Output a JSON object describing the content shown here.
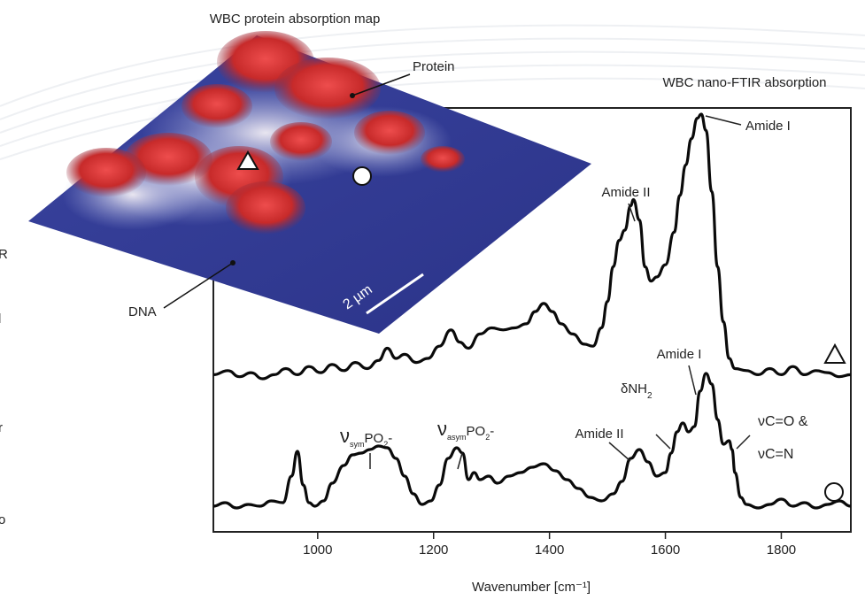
{
  "map": {
    "title": "WBC protein absorption map",
    "protein_label": "Protein",
    "dna_label": "DNA",
    "scale_label": "2 µm"
  },
  "chart_data": {
    "type": "line",
    "title": "WBC nano-FTIR absorption",
    "xlabel": "Wavenumber [cm⁻¹]",
    "ylabel": "",
    "xlim": [
      820,
      1920
    ],
    "xticks": [
      1000,
      1200,
      1400,
      1600,
      1800
    ],
    "grid": false,
    "series": [
      {
        "marker": "triangle",
        "x": [
          820,
          845,
          865,
          885,
          905,
          925,
          945,
          965,
          985,
          1005,
          1025,
          1045,
          1065,
          1085,
          1105,
          1120,
          1135,
          1150,
          1170,
          1190,
          1210,
          1230,
          1245,
          1260,
          1280,
          1300,
          1320,
          1340,
          1360,
          1375,
          1390,
          1405,
          1420,
          1440,
          1460,
          1475,
          1490,
          1500,
          1510,
          1520,
          1530,
          1540,
          1545,
          1555,
          1565,
          1575,
          1585,
          1600,
          1615,
          1625,
          1635,
          1645,
          1655,
          1662,
          1670,
          1680,
          1690,
          1700,
          1710,
          1720,
          1740,
          1760,
          1780,
          1800,
          1820,
          1840,
          1860,
          1880,
          1900,
          1920
        ],
        "values": [
          0.02,
          0.04,
          0.01,
          0.03,
          0.0,
          0.02,
          0.05,
          0.02,
          0.06,
          0.03,
          0.07,
          0.04,
          0.08,
          0.05,
          0.09,
          0.15,
          0.1,
          0.12,
          0.08,
          0.1,
          0.16,
          0.24,
          0.18,
          0.15,
          0.22,
          0.25,
          0.24,
          0.25,
          0.27,
          0.33,
          0.37,
          0.33,
          0.27,
          0.22,
          0.17,
          0.16,
          0.25,
          0.38,
          0.55,
          0.68,
          0.73,
          0.85,
          0.88,
          0.78,
          0.55,
          0.48,
          0.5,
          0.56,
          0.72,
          0.9,
          1.05,
          1.18,
          1.28,
          1.3,
          1.22,
          0.92,
          0.55,
          0.28,
          0.1,
          0.05,
          0.04,
          0.02,
          0.05,
          0.02,
          0.06,
          0.02,
          0.04,
          0.03,
          0.01,
          0.02
        ]
      },
      {
        "marker": "circle",
        "x": [
          820,
          840,
          860,
          880,
          900,
          920,
          940,
          955,
          965,
          975,
          985,
          995,
          1010,
          1025,
          1045,
          1060,
          1075,
          1090,
          1105,
          1120,
          1135,
          1150,
          1165,
          1180,
          1195,
          1210,
          1225,
          1240,
          1250,
          1260,
          1270,
          1280,
          1295,
          1310,
          1330,
          1350,
          1370,
          1390,
          1410,
          1430,
          1450,
          1470,
          1490,
          1510,
          1525,
          1540,
          1555,
          1570,
          1585,
          1600,
          1610,
          1620,
          1630,
          1640,
          1650,
          1660,
          1670,
          1680,
          1690,
          1700,
          1710,
          1715,
          1720,
          1730,
          1740,
          1760,
          1780,
          1800,
          1820,
          1840,
          1860,
          1880,
          1900,
          1920
        ],
        "values": [
          0.03,
          0.05,
          0.02,
          0.04,
          0.03,
          0.06,
          0.05,
          0.2,
          0.34,
          0.15,
          0.05,
          0.03,
          0.06,
          0.16,
          0.26,
          0.32,
          0.33,
          0.35,
          0.37,
          0.36,
          0.3,
          0.2,
          0.1,
          0.04,
          0.06,
          0.15,
          0.3,
          0.36,
          0.33,
          0.18,
          0.22,
          0.18,
          0.2,
          0.16,
          0.2,
          0.22,
          0.25,
          0.27,
          0.23,
          0.18,
          0.13,
          0.08,
          0.06,
          0.1,
          0.17,
          0.3,
          0.35,
          0.28,
          0.2,
          0.22,
          0.33,
          0.45,
          0.5,
          0.45,
          0.48,
          0.68,
          0.78,
          0.72,
          0.52,
          0.38,
          0.4,
          0.35,
          0.22,
          0.08,
          0.04,
          0.02,
          0.04,
          0.07,
          0.03,
          0.05,
          0.02,
          0.04,
          0.06,
          0.03
        ]
      }
    ],
    "annotations": [
      {
        "text": "Amide I",
        "series": 0,
        "x": 1658
      },
      {
        "text": "Amide II",
        "series": 0,
        "x": 1545
      },
      {
        "text": "Amide I",
        "series": 1,
        "x": 1657
      },
      {
        "text": "Amide II",
        "series": 1,
        "x": 1538
      },
      {
        "text": "δNH₂",
        "series": 1,
        "x": 1605
      },
      {
        "text": "νsymPO₂-",
        "series": 1,
        "x": 1085
      },
      {
        "text": "νasymPO₂-",
        "series": 1,
        "x": 1235
      },
      {
        "text": "νC=O & νC=N",
        "series": 1,
        "x": 1712
      }
    ]
  },
  "labels": {
    "amide1_top": "Amide I",
    "amide2_top": "Amide II",
    "amide1_bot": "Amide I",
    "amide2_bot": "Amide II",
    "dnh2_main": "δNH",
    "dnh2_sub": "2",
    "vsym_nu": "ν",
    "vsym_sub": "sym",
    "vsym_main": "PO",
    "vsym_sub2": "2",
    "vsym_tail": "-",
    "vasym_nu": "ν",
    "vasym_sub": "asym",
    "vasym_main": "PO",
    "vasym_sub2": "2",
    "vasym_tail": "-",
    "vco_line1": "νC=O &",
    "vco_line2": "νC=N"
  },
  "page_edge_text": [
    "R",
    "l",
    "r",
    "o"
  ]
}
